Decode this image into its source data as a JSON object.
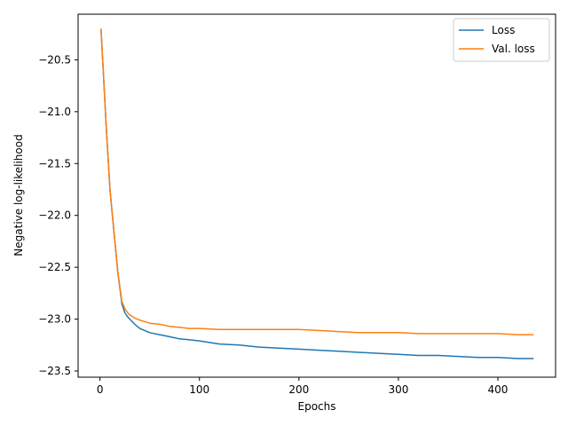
{
  "chart_data": {
    "type": "line",
    "title": "",
    "xlabel": "Epochs",
    "ylabel": "Negative log-likelihood",
    "xlim": [
      -22,
      458
    ],
    "ylim": [
      -23.56,
      -20.06
    ],
    "xticks": [
      0,
      100,
      200,
      300,
      400
    ],
    "xtick_labels": [
      "0",
      "100",
      "200",
      "300",
      "400"
    ],
    "yticks": [
      -20.5,
      -21.0,
      -21.5,
      -22.0,
      -22.5,
      -23.0,
      -23.5
    ],
    "ytick_labels": [
      "−20.5",
      "−21.0",
      "−21.5",
      "−22.0",
      "−22.5",
      "−23.0",
      "−23.5"
    ],
    "grid": false,
    "legend_position": "upper-right",
    "series": [
      {
        "name": "Loss",
        "color": "#1f77b4",
        "x": [
          1,
          3,
          6,
          10,
          14,
          18,
          22,
          25,
          28,
          30,
          35,
          40,
          50,
          60,
          70,
          80,
          90,
          100,
          120,
          140,
          160,
          180,
          200,
          220,
          240,
          260,
          280,
          300,
          320,
          340,
          360,
          380,
          400,
          420,
          436
        ],
        "y": [
          -20.2,
          -20.55,
          -21.1,
          -21.75,
          -22.15,
          -22.55,
          -22.85,
          -22.94,
          -22.98,
          -23.0,
          -23.05,
          -23.09,
          -23.13,
          -23.15,
          -23.17,
          -23.19,
          -23.2,
          -23.21,
          -23.24,
          -23.25,
          -23.27,
          -23.28,
          -23.29,
          -23.3,
          -23.31,
          -23.32,
          -23.33,
          -23.34,
          -23.35,
          -23.35,
          -23.36,
          -23.37,
          -23.37,
          -23.38,
          -23.38
        ]
      },
      {
        "name": "Val. loss",
        "color": "#ff7f0e",
        "x": [
          1,
          3,
          6,
          10,
          14,
          18,
          22,
          25,
          28,
          30,
          35,
          40,
          50,
          60,
          70,
          80,
          90,
          100,
          120,
          140,
          160,
          180,
          200,
          220,
          240,
          260,
          280,
          300,
          320,
          340,
          360,
          380,
          400,
          420,
          436
        ],
        "y": [
          -20.2,
          -20.55,
          -21.1,
          -21.75,
          -22.15,
          -22.55,
          -22.83,
          -22.9,
          -22.94,
          -22.96,
          -22.99,
          -23.01,
          -23.04,
          -23.05,
          -23.07,
          -23.08,
          -23.09,
          -23.09,
          -23.1,
          -23.1,
          -23.1,
          -23.1,
          -23.1,
          -23.11,
          -23.12,
          -23.13,
          -23.13,
          -23.13,
          -23.14,
          -23.14,
          -23.14,
          -23.14,
          -23.14,
          -23.15,
          -23.15
        ]
      }
    ]
  }
}
